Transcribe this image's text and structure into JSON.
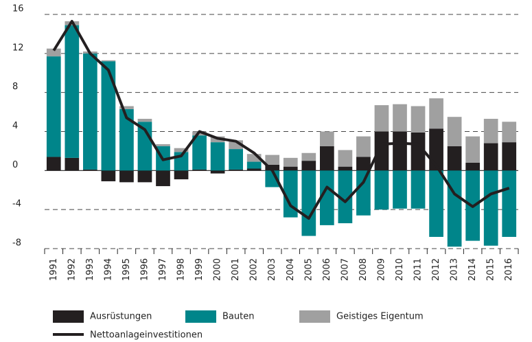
{
  "chart_data": {
    "type": "stacked_bar_line",
    "categories": [
      "1991",
      "1992",
      "1993",
      "1994",
      "1995",
      "1996",
      "1997",
      "1998",
      "1999",
      "2000",
      "2001",
      "2002",
      "2003",
      "2004",
      "2005",
      "2006",
      "2007",
      "2008",
      "2009",
      "2010",
      "2011",
      "2012",
      "2013",
      "2014",
      "2015",
      "2016"
    ],
    "series": [
      {
        "name": "Ausrüstungen",
        "color": "#231f20",
        "kind": "bar",
        "values": [
          1.4,
          1.3,
          0.1,
          -1.1,
          -1.2,
          -1.2,
          -1.6,
          -0.9,
          0.1,
          -0.3,
          0.1,
          0.2,
          0.6,
          0.4,
          1.0,
          2.5,
          0.4,
          1.4,
          4.0,
          4.0,
          3.9,
          4.3,
          2.5,
          0.8,
          2.8,
          2.9
        ]
      },
      {
        "name": "Bauten",
        "color": "#00858a",
        "kind": "bar",
        "values": [
          10.3,
          13.6,
          11.9,
          11.2,
          6.3,
          5.0,
          2.5,
          1.9,
          3.5,
          2.9,
          2.1,
          0.7,
          -1.7,
          -4.8,
          -6.7,
          -5.6,
          -5.4,
          -4.6,
          -4.0,
          -3.9,
          -3.9,
          -6.8,
          -7.8,
          -7.2,
          -7.7,
          -6.8
        ]
      },
      {
        "name": "Geistiges Eigentum",
        "color": "#a0a0a0",
        "kind": "bar",
        "values": [
          0.8,
          0.4,
          0.2,
          0.1,
          0.3,
          0.3,
          0.2,
          0.4,
          0.4,
          0.6,
          0.9,
          0.8,
          1.0,
          0.9,
          0.8,
          1.5,
          1.7,
          2.1,
          2.7,
          2.8,
          2.7,
          3.1,
          3.0,
          2.7,
          2.5,
          2.1
        ]
      },
      {
        "name": "Nettoanlageinvestitionen",
        "color": "#231f20",
        "kind": "line",
        "values": [
          12.3,
          15.3,
          12.0,
          10.3,
          5.4,
          4.2,
          1.1,
          1.5,
          4.0,
          3.3,
          3.0,
          1.8,
          0.0,
          -3.6,
          -4.9,
          -1.7,
          -3.2,
          -1.2,
          2.7,
          2.8,
          2.7,
          0.5,
          -2.4,
          -3.7,
          -2.4,
          -1.8
        ]
      }
    ],
    "ylim": [
      -8,
      16
    ],
    "yticks": [
      -8,
      -4,
      0,
      4,
      8,
      12,
      16
    ],
    "grid": true
  }
}
